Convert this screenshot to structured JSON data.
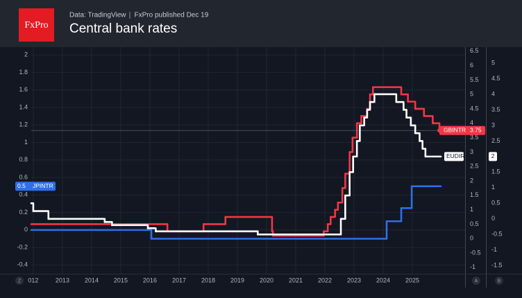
{
  "chart_data": {
    "type": "line",
    "step": true,
    "grid": true,
    "logo": "FxPro",
    "source": "Data: TradingView",
    "publisher": "FxPro published Dec 19",
    "title": "Central bank rates",
    "axis_buttons": [
      "Z",
      "A",
      "B"
    ],
    "xlim": [
      2011.93,
      2026.81
    ],
    "xticks": [
      {
        "value": 2012,
        "label": "012"
      },
      2013,
      2014,
      2015,
      2016,
      2017,
      2018,
      2019,
      2020,
      2021,
      2022,
      2023,
      2024,
      2025
    ],
    "ylim": [
      -0.5,
      2.09
    ],
    "yticks": [
      -0.4,
      -0.2,
      0,
      0.2,
      0.4,
      0.6,
      0.8,
      1,
      1.2,
      1.4,
      1.6,
      1.8,
      2
    ],
    "y2lim": [
      -1.22,
      6.64
    ],
    "y2ticks": [
      -1,
      -0.5,
      0,
      0.5,
      1,
      1.5,
      2,
      2.5,
      3,
      3.5,
      4,
      4.5,
      5,
      5.5,
      6,
      6.5
    ],
    "y3lim": [
      -1.76,
      5.51
    ],
    "y3ticks": [
      -1.5,
      -1,
      -0.5,
      0,
      0.5,
      1,
      1.5,
      2,
      2.5,
      3,
      3.5,
      4,
      4.5,
      5
    ],
    "series": [
      {
        "name": "GBINTR",
        "color": "#f23645",
        "axis": "y2",
        "x": [
          2011.93,
          2016.6,
          2017.84,
          2018.59,
          2020.19,
          2020.22,
          2021.96,
          2022.1,
          2022.2,
          2022.35,
          2022.45,
          2022.6,
          2022.7,
          2022.85,
          2022.95,
          2023.1,
          2023.25,
          2023.45,
          2023.55,
          2023.65,
          2024.62,
          2024.85,
          2025.1,
          2025.4,
          2025.7,
          2025.93,
          2026.05
        ],
        "values": [
          0.5,
          0.25,
          0.5,
          0.75,
          0.25,
          0.1,
          0.25,
          0.5,
          0.75,
          1,
          1.25,
          1.75,
          2.25,
          3,
          3.5,
          4,
          4.25,
          4.5,
          5,
          5.25,
          5,
          4.75,
          4.5,
          4.25,
          4,
          3.75,
          3.75
        ]
      },
      {
        "name": "EUDIR",
        "color": "#ffffff",
        "axis": "y3",
        "x": [
          2011.93,
          2012.0,
          2012.52,
          2014.45,
          2014.7,
          2015.93,
          2016.2,
          2019.7,
          2022.55,
          2022.7,
          2022.85,
          2022.97,
          2023.1,
          2023.2,
          2023.35,
          2023.45,
          2023.55,
          2023.7,
          2024.45,
          2024.7,
          2024.8,
          2024.95,
          2025.1,
          2025.25,
          2025.35,
          2025.45,
          2025.98
        ],
        "values": [
          0.5,
          0.25,
          0,
          -0.1,
          -0.2,
          -0.3,
          -0.4,
          -0.5,
          0,
          0.75,
          1.5,
          2,
          2.5,
          3,
          3.25,
          3.5,
          3.75,
          4,
          3.75,
          3.5,
          3.25,
          3,
          2.75,
          2.5,
          2.25,
          2,
          2
        ]
      },
      {
        "name": "JPINTR",
        "color": "#2f6fe8",
        "axis": "y",
        "x": [
          2011.93,
          2016.05,
          2024.12,
          2024.62,
          2024.98,
          2025.98
        ],
        "values": [
          0,
          -0.1,
          0.1,
          0.25,
          0.5,
          0.5
        ]
      }
    ]
  }
}
